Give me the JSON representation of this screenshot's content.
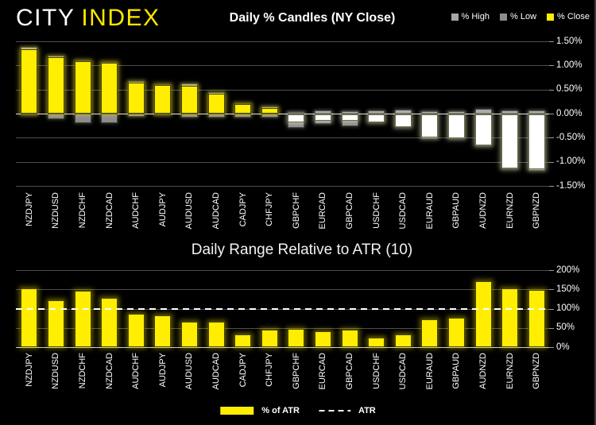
{
  "header": {
    "logo_city": "CITY",
    "logo_index": "INDEX",
    "candles_title": "Daily % Candles (NY Close)",
    "legend": [
      {
        "label": "% High"
      },
      {
        "label": "% Low"
      },
      {
        "label": "% Close"
      }
    ]
  },
  "atr_chart": {
    "title": "Daily Range Relative to ATR (10)",
    "legend_bar_label": "% of ATR",
    "legend_line_label": "ATR"
  },
  "colors": {
    "close_positive": "#ffee00",
    "close_negative": "#ffffff",
    "high_bar": "#a6a6a6",
    "low_bar": "#8c8c8c",
    "brand_yellow": "#ffe600",
    "atr_line": "#ffffff",
    "text": "#ffffff"
  },
  "chart_data": [
    {
      "type": "bar",
      "title": "Daily % Candles (NY Close)",
      "categories": [
        "NZDJPY",
        "NZDUSD",
        "NZDCHF",
        "NZDCAD",
        "AUDCHF",
        "AUDJPY",
        "AUDUSD",
        "AUDCAD",
        "CADJPY",
        "CHFJPY",
        "GBPCHF",
        "EURCAD",
        "GBPCAD",
        "USDCHF",
        "USDCAD",
        "EURAUD",
        "GBPAUD",
        "AUDNZD",
        "EURNZD",
        "GBPNZD"
      ],
      "series": [
        {
          "name": "% High",
          "values": [
            1.38,
            1.21,
            1.1,
            1.07,
            0.67,
            0.61,
            0.62,
            0.44,
            0.22,
            0.15,
            0.04,
            0.07,
            0.05,
            0.06,
            0.08,
            0.05,
            0.05,
            0.1,
            0.07,
            0.07
          ]
        },
        {
          "name": "% Low",
          "values": [
            -0.04,
            -0.11,
            -0.2,
            -0.19,
            -0.06,
            -0.04,
            -0.09,
            -0.08,
            -0.09,
            -0.08,
            -0.29,
            -0.22,
            -0.26,
            -0.18,
            -0.28,
            -0.53,
            -0.53,
            -0.67,
            -1.16,
            -1.18
          ]
        },
        {
          "name": "% Close",
          "values": [
            1.33,
            1.17,
            1.08,
            1.05,
            0.65,
            0.59,
            0.58,
            0.42,
            0.19,
            0.12,
            -0.17,
            -0.13,
            -0.13,
            -0.16,
            -0.26,
            -0.48,
            -0.49,
            -0.64,
            -1.12,
            -1.14
          ]
        }
      ],
      "ylim": [
        -1.5,
        1.5
      ],
      "ytick_values": [
        1.5,
        1.0,
        0.5,
        0,
        -0.5,
        -1.0,
        -1.5
      ],
      "ytick_labels": [
        "1.50%",
        "1.00%",
        "0.50%",
        "0.00%",
        "-0.50%",
        "-1.00%",
        "-1.50%"
      ],
      "legend_position": "top-right",
      "grid": true
    },
    {
      "type": "bar",
      "title": "Daily Range Relative to ATR (10)",
      "categories": [
        "NZDJPY",
        "NZDUSD",
        "NZDCHF",
        "NZDCAD",
        "AUDCHF",
        "AUDJPY",
        "AUDUSD",
        "AUDCAD",
        "CADJPY",
        "CHFJPY",
        "GBPCHF",
        "EURCAD",
        "GBPCAD",
        "USDCHF",
        "USDCAD",
        "EURAUD",
        "GBPAUD",
        "AUDNZD",
        "EURNZD",
        "GBPNZD"
      ],
      "series": [
        {
          "name": "% of ATR",
          "values": [
            153,
            122,
            146,
            127,
            86,
            82,
            65,
            67,
            34,
            46,
            48,
            41,
            46,
            24,
            32,
            72,
            76,
            172,
            153,
            148
          ]
        }
      ],
      "reference_line": {
        "name": "ATR",
        "value": 100,
        "style": "dashed"
      },
      "ylim": [
        0,
        200
      ],
      "ytick_values": [
        200,
        150,
        100,
        50,
        0
      ],
      "ytick_labels": [
        "200%",
        "150%",
        "100%",
        "50%",
        "0%"
      ],
      "legend_position": "bottom",
      "grid": true
    }
  ]
}
